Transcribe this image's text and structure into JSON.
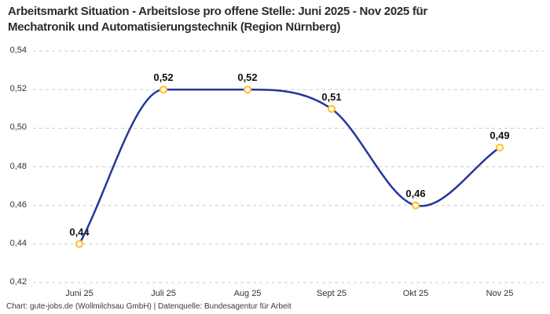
{
  "title": {
    "line1": "Arbeitsmarkt Situation - Arbeitslose pro offene Stelle: Juni 2025 - Nov 2025 für",
    "line2": "Mechatronik und Automatisierungstechnik (Region Nürnberg)"
  },
  "footer": "Chart: gute-jobs.de (Wollmilchsau GmbH) | Datenquelle: Bundesagentur für Arbeit",
  "colors": {
    "line": "#23379b",
    "marker_ring": "#ffc332",
    "marker_fill": "#ffffff",
    "grid": "#cccccc",
    "title_text": "#2b2b2b",
    "axis_text": "#333333",
    "point_label_text": "#111111",
    "background": "#ffffff"
  },
  "chart_data": {
    "type": "line",
    "title": "Arbeitsmarkt Situation - Arbeitslose pro offene Stelle: Juni 2025 - Nov 2025 für Mechatronik und Automatisierungstechnik (Region Nürnberg)",
    "categories": [
      "Juni 25",
      "Juli 25",
      "Aug 25",
      "Sept 25",
      "Okt 25",
      "Nov 25"
    ],
    "values": [
      0.44,
      0.52,
      0.52,
      0.51,
      0.46,
      0.49
    ],
    "point_labels": [
      "0,44",
      "0,52",
      "0,52",
      "0,51",
      "0,46",
      "0,49"
    ],
    "y_ticks": [
      0.54,
      0.52,
      0.5,
      0.48,
      0.46,
      0.44,
      0.42
    ],
    "y_tick_labels": [
      "0,54",
      "0,52",
      "0,50",
      "0,48",
      "0,46",
      "0,44",
      "0,42"
    ],
    "ylim": [
      0.42,
      0.54
    ],
    "xlabel": "",
    "ylabel": "",
    "legend": "none",
    "grid": "dashed-horizontal",
    "interpolation": "cubic-spline"
  }
}
